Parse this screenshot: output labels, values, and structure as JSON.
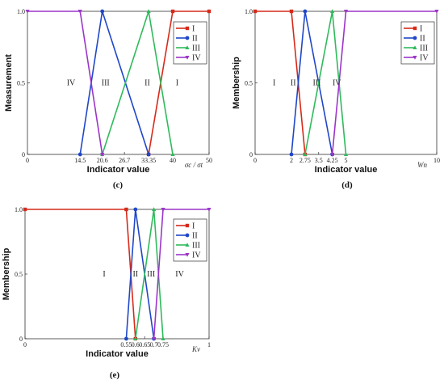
{
  "colors": {
    "I": "#d62a1a",
    "II": "#1f47c8",
    "III": "#2fba5c",
    "IV": "#9b35c9"
  },
  "chart_data": [
    {
      "type": "line",
      "panel_label": "(c)",
      "xlabel": "Indicator value",
      "xvar": "σc / σt",
      "ylabel": "Measurement",
      "xlim": [
        0,
        50
      ],
      "ylim": [
        0,
        1
      ],
      "xticks": [
        0,
        14.5,
        20.6,
        26.7,
        33.35,
        40,
        50
      ],
      "xtick_labels": [
        "0",
        "14.5",
        "20.6",
        "26.7",
        "33.35",
        "40",
        "50"
      ],
      "yticks": [
        0,
        0.5,
        1.0
      ],
      "ytick_labels": [
        "0",
        "0.5",
        "1.0"
      ],
      "legend": [
        "I",
        "II",
        "III",
        "IV"
      ],
      "series": [
        {
          "name": "I",
          "x": [
            33.35,
            40,
            50
          ],
          "y": [
            0,
            1,
            1
          ]
        },
        {
          "name": "II",
          "x": [
            14.5,
            20.6,
            33.35
          ],
          "y": [
            0,
            1,
            0
          ]
        },
        {
          "name": "III",
          "x": [
            20.6,
            33.35,
            40
          ],
          "y": [
            0,
            1,
            0
          ]
        },
        {
          "name": "IV",
          "x": [
            0,
            14.5,
            20.6
          ],
          "y": [
            1,
            1,
            0
          ]
        }
      ],
      "region_labels": [
        {
          "text": "IV",
          "x": 12,
          "y": 0.5
        },
        {
          "text": "III",
          "x": 21.5,
          "y": 0.5
        },
        {
          "text": "II",
          "x": 33,
          "y": 0.5
        },
        {
          "text": "I",
          "x": 41.2,
          "y": 0.5
        }
      ]
    },
    {
      "type": "line",
      "panel_label": "(d)",
      "xlabel": "Indicator value",
      "xvar": "Wn",
      "ylabel": "Membership",
      "xlim": [
        0,
        10
      ],
      "ylim": [
        0,
        1
      ],
      "xticks": [
        0,
        2,
        2.75,
        3.5,
        4.25,
        5,
        10
      ],
      "xtick_labels": [
        "0",
        "2",
        "2.75",
        "3.5",
        "4.25",
        "5",
        "10"
      ],
      "yticks": [
        0,
        0.5,
        1.0
      ],
      "ytick_labels": [
        "0",
        "0.5",
        "1.0"
      ],
      "legend": [
        "I",
        "II",
        "III",
        "IV"
      ],
      "series": [
        {
          "name": "I",
          "x": [
            0,
            2,
            2.75
          ],
          "y": [
            1,
            1,
            0
          ]
        },
        {
          "name": "II",
          "x": [
            2,
            2.75,
            4.25
          ],
          "y": [
            0,
            1,
            0
          ]
        },
        {
          "name": "III",
          "x": [
            2.75,
            4.25,
            5
          ],
          "y": [
            0,
            1,
            0
          ]
        },
        {
          "name": "IV",
          "x": [
            4.25,
            5,
            10
          ],
          "y": [
            0,
            1,
            1
          ]
        }
      ],
      "region_labels": [
        {
          "text": "I",
          "x": 1.05,
          "y": 0.5
        },
        {
          "text": "II",
          "x": 2.1,
          "y": 0.5
        },
        {
          "text": "III",
          "x": 3.4,
          "y": 0.5
        },
        {
          "text": "IV",
          "x": 4.5,
          "y": 0.5
        }
      ]
    },
    {
      "type": "line",
      "panel_label": "(e)",
      "xlabel": "Indicator value",
      "xvar": "Kv",
      "ylabel": "Membership",
      "xlim": [
        0,
        1
      ],
      "ylim": [
        0,
        1
      ],
      "xticks": [
        0,
        0.55,
        0.6,
        0.65,
        0.7,
        0.75,
        1
      ],
      "xtick_labels": [
        "0",
        "0.55",
        "0.6",
        "0.65",
        "0.7",
        "0.75",
        "1"
      ],
      "yticks": [
        0,
        0.5,
        1.0
      ],
      "ytick_labels": [
        "0",
        "0.5",
        "1.0"
      ],
      "legend": [
        "I",
        "II",
        "III",
        "IV"
      ],
      "series": [
        {
          "name": "I",
          "x": [
            0,
            0.55,
            0.6
          ],
          "y": [
            1,
            1,
            0
          ]
        },
        {
          "name": "II",
          "x": [
            0.55,
            0.6,
            0.7
          ],
          "y": [
            0,
            1,
            0
          ]
        },
        {
          "name": "III",
          "x": [
            0.6,
            0.7,
            0.75
          ],
          "y": [
            0,
            1,
            0
          ]
        },
        {
          "name": "IV",
          "x": [
            0.7,
            0.75,
            1
          ],
          "y": [
            0,
            1,
            1
          ]
        }
      ],
      "region_labels": [
        {
          "text": "I",
          "x": 0.43,
          "y": 0.5
        },
        {
          "text": "II",
          "x": 0.6,
          "y": 0.5
        },
        {
          "text": "III",
          "x": 0.685,
          "y": 0.5
        },
        {
          "text": "IV",
          "x": 0.84,
          "y": 0.5
        }
      ]
    }
  ]
}
